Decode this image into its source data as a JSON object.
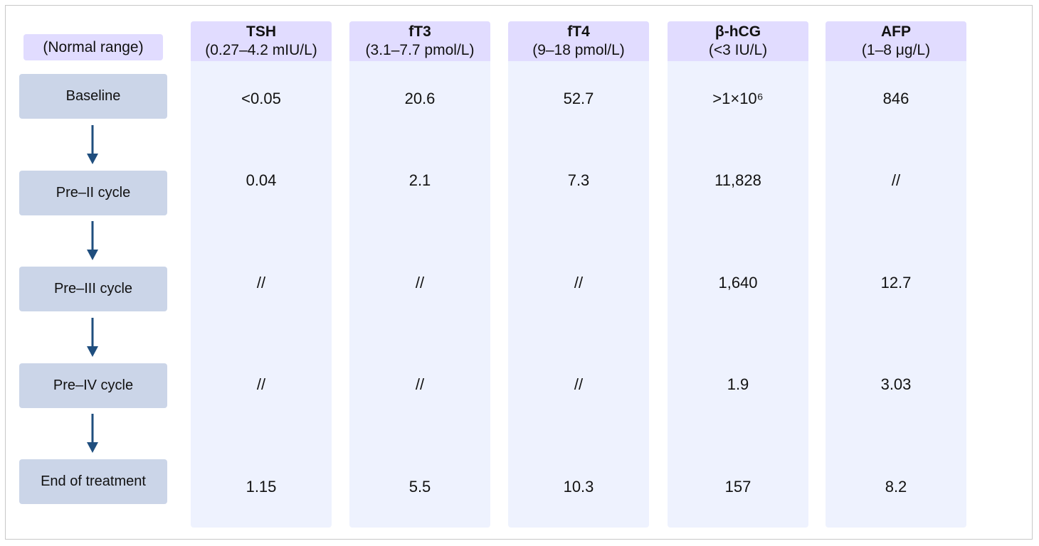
{
  "range_label": "(Normal range)",
  "stages": [
    "Baseline",
    "Pre–II cycle",
    "Pre–III cycle",
    "Pre–IV cycle",
    "End of treatment"
  ],
  "columns": [
    {
      "name": "TSH",
      "range": "(0.27–4.2 mIU/L)",
      "values": [
        "<0.05",
        "0.04",
        "//",
        "//",
        "1.15"
      ]
    },
    {
      "name": "fT3",
      "range": "(3.1–7.7 pmol/L)",
      "values": [
        "20.6",
        "2.1",
        "//",
        "//",
        "5.5"
      ]
    },
    {
      "name": "fT4",
      "range": "(9–18 pmol/L)",
      "values": [
        "52.7",
        "7.3",
        "//",
        "//",
        "10.3"
      ]
    },
    {
      "name": "β-hCG",
      "range": "(<3 IU/L)",
      "values": [
        ">1×10⁶",
        "11,828",
        "1,640",
        "1.9",
        "157"
      ]
    },
    {
      "name": "AFP",
      "range": "(1–8 μg/L)",
      "values": [
        "846",
        "//",
        "12.7",
        "3.03",
        "8.2"
      ]
    }
  ],
  "colors": {
    "header": "#e1dcff",
    "column": "#eef2fe",
    "stage": "#cbd5e8",
    "arrow": "#1f4e7e"
  }
}
